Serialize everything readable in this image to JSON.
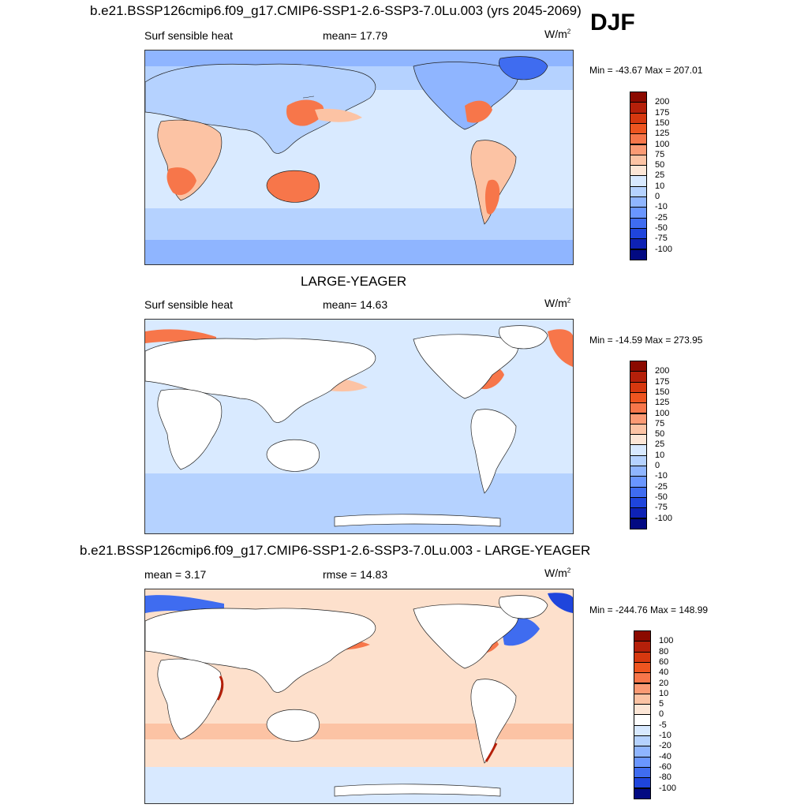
{
  "season": "DJF",
  "unit_main": "W/m",
  "unit_exp": "2",
  "panels": [
    {
      "title": "b.e21.BSSP126cmip6.f09_g17.CMIP6-SSP1-2.6-SSP3-7.0Lu.003 (yrs 2045-2069)",
      "left_label": "Surf sensible heat",
      "center_label": "mean=  17.79",
      "minmax": "Min = -43.67 Max = 207.01",
      "ocean_color": "#d9eaff",
      "land_fill": "pattern"
    },
    {
      "title": "LARGE-YEAGER",
      "left_label": "Surf sensible heat",
      "center_label": "mean=  14.63",
      "minmax": "Min = -14.59 Max = 273.95",
      "ocean_color": "#d9eaff",
      "land_fill": "white"
    },
    {
      "title": "b.e21.BSSP126cmip6.f09_g17.CMIP6-SSP1-2.6-SSP3-7.0Lu.003 - LARGE-YEAGER",
      "left_label": "mean =   3.17",
      "center_label": "rmse =  14.83",
      "minmax": "Min = -244.76 Max = 148.99",
      "ocean_color": "#fde0cc",
      "land_fill": "white"
    }
  ],
  "colorbars": [
    {
      "labels": [
        "200",
        "175",
        "150",
        "125",
        "100",
        "75",
        "50",
        "25",
        "10",
        "0",
        "-10",
        "-25",
        "-50",
        "-75",
        "-100"
      ],
      "colors": [
        "#8b0a00",
        "#b5200a",
        "#d6380f",
        "#ee5520",
        "#f7764a",
        "#fb9a74",
        "#fcc3a4",
        "#fde6d6",
        "#d8e9ff",
        "#b5d2ff",
        "#8fb5ff",
        "#6a96ff",
        "#3f6cf0",
        "#1f45dc",
        "#0e22b4",
        "#020a82"
      ]
    },
    {
      "labels": [
        "200",
        "175",
        "150",
        "125",
        "100",
        "75",
        "50",
        "25",
        "10",
        "0",
        "-10",
        "-25",
        "-50",
        "-75",
        "-100"
      ],
      "colors": [
        "#8b0a00",
        "#b5200a",
        "#d6380f",
        "#ee5520",
        "#f7764a",
        "#fb9a74",
        "#fcc3a4",
        "#fde6d6",
        "#d8e9ff",
        "#b5d2ff",
        "#8fb5ff",
        "#6a96ff",
        "#3f6cf0",
        "#1f45dc",
        "#0e22b4",
        "#020a82"
      ]
    },
    {
      "labels": [
        "100",
        "80",
        "60",
        "40",
        "20",
        "10",
        "5",
        "0",
        "-5",
        "-10",
        "-20",
        "-40",
        "-60",
        "-80",
        "-100"
      ],
      "colors": [
        "#8b0a00",
        "#b5200a",
        "#d6380f",
        "#ee5520",
        "#f7764a",
        "#fb9a74",
        "#fcc3a4",
        "#fde6d6",
        "#ffffff",
        "#d8e9ff",
        "#b5d2ff",
        "#8fb5ff",
        "#6a96ff",
        "#3f6cf0",
        "#1f45dc",
        "#020a82"
      ]
    }
  ]
}
